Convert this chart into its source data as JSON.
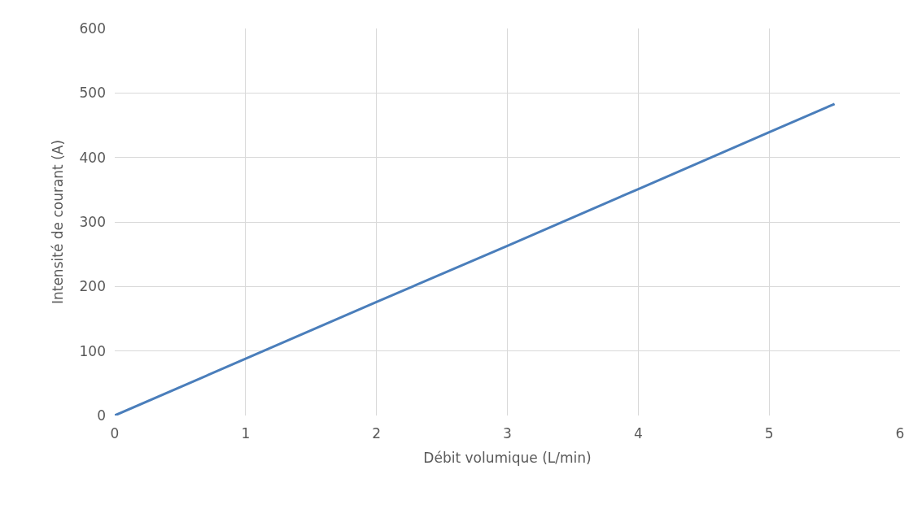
{
  "chart_data": {
    "type": "line",
    "xlabel": "Débit volumique (L/min)",
    "ylabel": "Intensité de courant (A)",
    "x": [
      0,
      1,
      2,
      3,
      4,
      5,
      5.5
    ],
    "series": [
      {
        "color": "#4a7ebb",
        "values": [
          0,
          88,
          176,
          263,
          351,
          439,
          483
        ]
      }
    ],
    "xlim": [
      0,
      6
    ],
    "xticks": [
      0,
      1,
      2,
      3,
      4,
      5,
      6
    ],
    "ylim": [
      0,
      600
    ],
    "yticks": [
      0,
      100,
      200,
      300,
      400,
      500,
      600
    ],
    "grid": true,
    "marker": "none",
    "line_style": "solid"
  }
}
